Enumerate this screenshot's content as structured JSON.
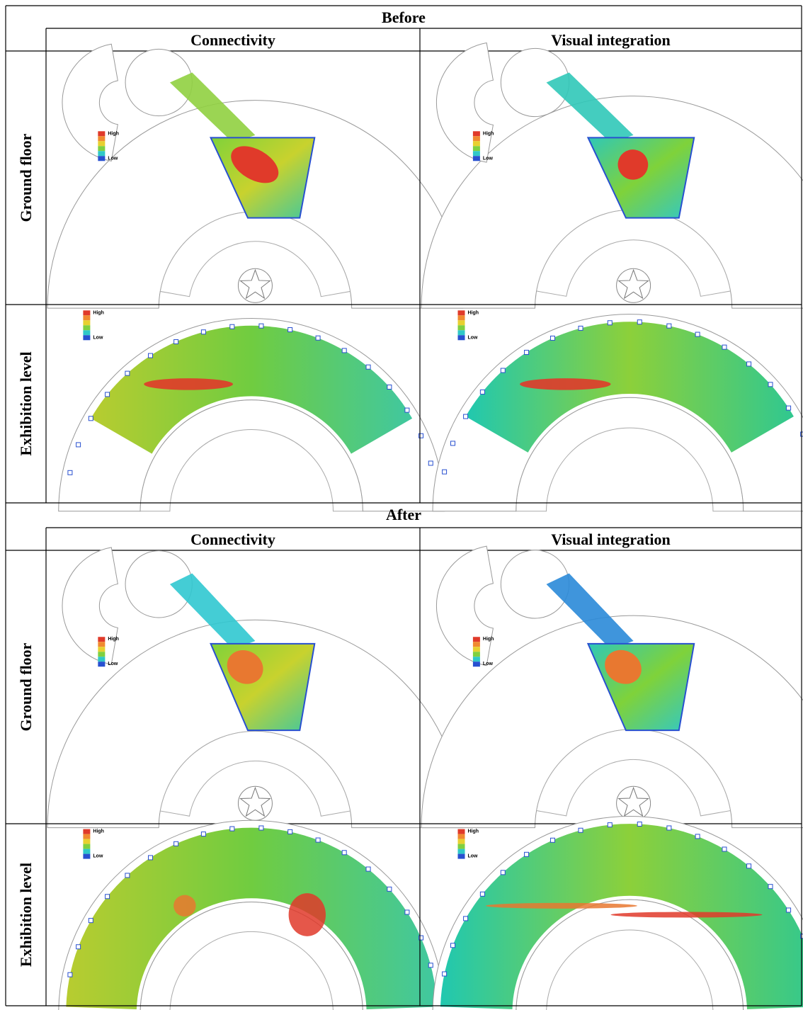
{
  "sections": [
    {
      "title": "Before",
      "columns": [
        "Connectivity",
        "Visual integration"
      ],
      "rows": [
        {
          "label": "Ground floor",
          "legends": [
            {
              "high": "High",
              "low": "Low"
            },
            {
              "high": "High",
              "low": "Low"
            }
          ]
        },
        {
          "label": "Exhibition level",
          "legends": [
            {
              "high": "High",
              "low": "Low"
            },
            {
              "high": "High",
              "low": "Low"
            }
          ]
        }
      ]
    },
    {
      "title": "After",
      "columns": [
        "Connectivity",
        "Visual integration"
      ],
      "rows": [
        {
          "label": "Ground floor",
          "legends": [
            {
              "high": "High",
              "low": "Low"
            },
            {
              "high": "High",
              "low": "Low"
            }
          ]
        },
        {
          "label": "Exhibition level",
          "legends": [
            {
              "high": "High",
              "low": "Low"
            },
            {
              "high": "High",
              "low": "Low"
            }
          ]
        }
      ]
    }
  ]
}
